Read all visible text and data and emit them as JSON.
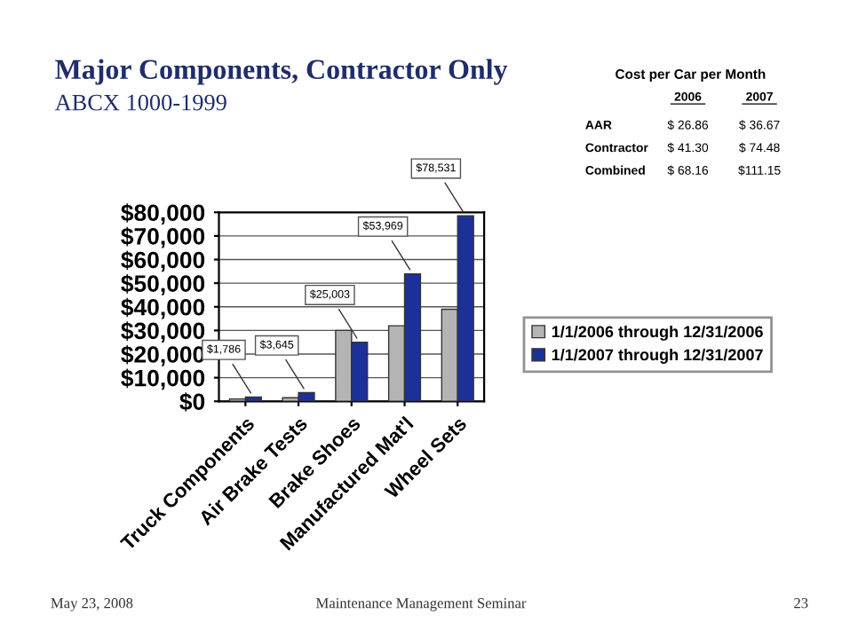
{
  "chart_data": [
    {
      "type": "bar",
      "title": "Major Components, Contractor Only",
      "subtitle": "ABCX 1000-1999",
      "categories": [
        "Truck Components",
        "Air Brake Tests",
        "Brake Shoes",
        "Manufactured Mat'l",
        "Wheel Sets"
      ],
      "series": [
        {
          "name": "1/1/2006 through 12/31/2006",
          "color": "#b4b4b4",
          "values": [
            1000,
            1500,
            30000,
            32000,
            39000
          ]
        },
        {
          "name": "1/1/2007 through 12/31/2007",
          "color": "#1c309a",
          "values": [
            1786,
            3645,
            25003,
            53969,
            78531
          ],
          "value_labels": [
            "$1,786",
            "$3,645",
            "$25,003",
            "$53,969",
            "$78,531"
          ]
        }
      ],
      "ylim": [
        0,
        80000
      ],
      "yticks": [
        {
          "value": 0,
          "label": "$0"
        },
        {
          "value": 10000,
          "label": "$10,000"
        },
        {
          "value": 20000,
          "label": "$20,000"
        },
        {
          "value": 30000,
          "label": "$30,000"
        },
        {
          "value": 40000,
          "label": "$40,000"
        },
        {
          "value": 50000,
          "label": "$50,000"
        },
        {
          "value": 60000,
          "label": "$60,000"
        },
        {
          "value": 70000,
          "label": "$70,000"
        },
        {
          "value": 80000,
          "label": "$80,000"
        }
      ],
      "grid": "y",
      "legend": "right",
      "annotations": [
        "May 23, 2008",
        "Maintenance Management Seminar",
        "23"
      ]
    },
    {
      "type": "other",
      "title": "Cost per Car per Month",
      "categories": [
        "2006",
        "2007"
      ],
      "y_categories": [
        "AAR",
        "Contractor",
        "Combined"
      ],
      "cell_labels": [
        [
          "$ 26.86",
          "$ 36.67"
        ],
        [
          "$ 41.30",
          "$ 74.48"
        ],
        [
          "$ 68.16",
          "$111.15"
        ]
      ]
    }
  ]
}
